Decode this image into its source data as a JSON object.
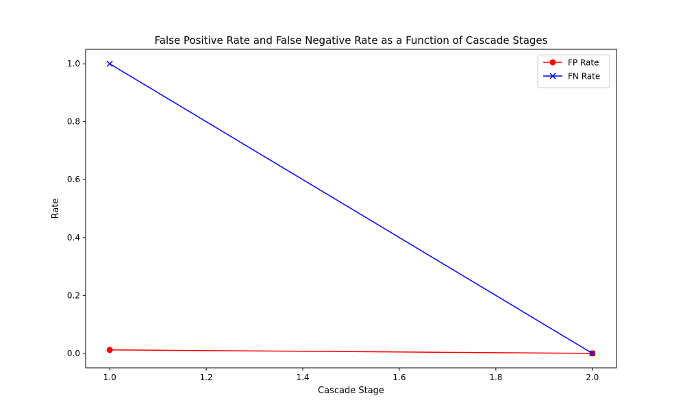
{
  "chart_data": {
    "type": "line",
    "title": "False Positive Rate and False Negative Rate as a Function of Cascade Stages",
    "xlabel": "Cascade Stage",
    "ylabel": "Rate",
    "xlim": [
      0.95,
      2.05
    ],
    "ylim": [
      -0.05,
      1.05
    ],
    "xticks": [
      1.0,
      1.2,
      1.4,
      1.6,
      1.8,
      2.0
    ],
    "xtick_labels": [
      "1.0",
      "1.2",
      "1.4",
      "1.6",
      "1.8",
      "2.0"
    ],
    "yticks": [
      0.0,
      0.2,
      0.4,
      0.6,
      0.8,
      1.0
    ],
    "ytick_labels": [
      "0.0",
      "0.2",
      "0.4",
      "0.6",
      "0.8",
      "1.0"
    ],
    "grid": false,
    "legend_position": "top-right",
    "series": [
      {
        "name": "FP Rate",
        "x": [
          1,
          2
        ],
        "values": [
          0.012,
          0.0
        ],
        "color": "#ff0000",
        "marker": "circle"
      },
      {
        "name": "FN Rate",
        "x": [
          1,
          2
        ],
        "values": [
          1.0,
          0.0
        ],
        "color": "#0000ff",
        "marker": "x"
      }
    ]
  }
}
